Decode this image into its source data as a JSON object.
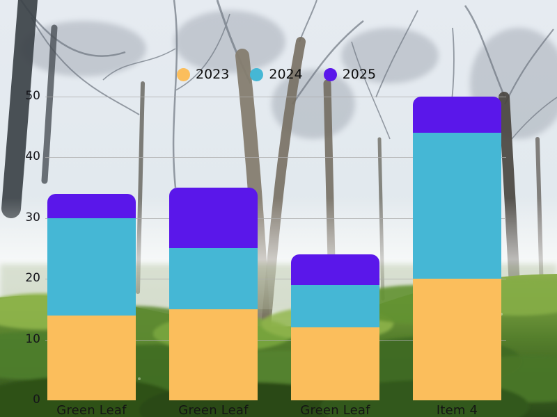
{
  "chart_data": {
    "type": "bar",
    "stacked": true,
    "title": "",
    "categories": [
      "Green Leaf",
      "Green Leaf",
      "Green Leaf",
      "Item 4"
    ],
    "series": [
      {
        "name": "2023",
        "color": "#FBBE5C",
        "values": [
          14,
          15,
          12,
          20
        ]
      },
      {
        "name": "2024",
        "color": "#45B7D5",
        "values": [
          16,
          10,
          7,
          24
        ]
      },
      {
        "name": "2025",
        "color": "#5A17EA",
        "values": [
          4,
          10,
          5,
          6
        ]
      }
    ],
    "xlabel": "",
    "ylabel": "",
    "ylim": [
      0,
      50
    ],
    "yticks": [
      0,
      10,
      20,
      30,
      40,
      50
    ],
    "grid": true,
    "legend_position": "top-center",
    "background": "photograph of foggy tea garden with bare trees"
  }
}
